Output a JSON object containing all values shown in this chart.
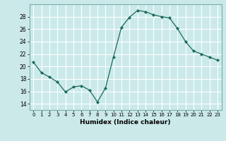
{
  "x": [
    0,
    1,
    2,
    3,
    4,
    5,
    6,
    7,
    8,
    9,
    10,
    11,
    12,
    13,
    14,
    15,
    16,
    17,
    18,
    19,
    20,
    21,
    22,
    23
  ],
  "y": [
    20.7,
    19.0,
    18.3,
    17.5,
    15.9,
    16.7,
    16.9,
    16.2,
    14.3,
    16.5,
    21.5,
    26.3,
    27.9,
    29.0,
    28.8,
    28.3,
    28.0,
    27.8,
    26.1,
    24.0,
    22.5,
    22.0,
    21.5,
    21.0
  ],
  "line_color": "#1a6b5a",
  "marker": "D",
  "marker_size": 2.0,
  "bg_color": "#cce9e9",
  "grid_color": "#ffffff",
  "xlabel": "Humidex (Indice chaleur)",
  "ylim": [
    13,
    30
  ],
  "xlim": [
    -0.5,
    23.5
  ],
  "yticks": [
    14,
    16,
    18,
    20,
    22,
    24,
    26,
    28
  ],
  "xticks": [
    0,
    1,
    2,
    3,
    4,
    5,
    6,
    7,
    8,
    9,
    10,
    11,
    12,
    13,
    14,
    15,
    16,
    17,
    18,
    19,
    20,
    21,
    22,
    23
  ]
}
